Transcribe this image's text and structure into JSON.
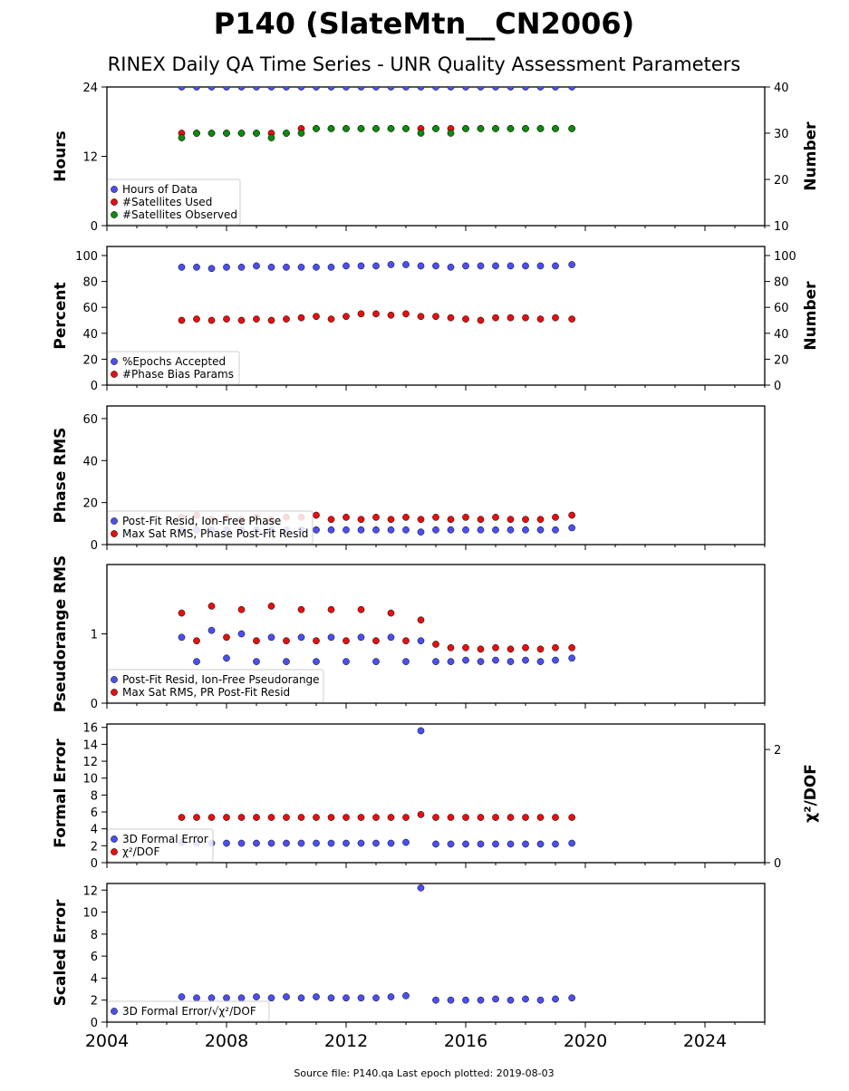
{
  "title": "P140 (SlateMtn__CN2006)",
  "subtitle": "RINEX Daily QA Time Series - UNR Quality Assessment Parameters",
  "footer": "Source file: P140.qa Last epoch plotted: 2019-08-03",
  "colors": {
    "blue": "#4b4ff0",
    "red": "#e41010",
    "green": "#0e8a0e",
    "edge": "#000000"
  },
  "chart_data": [
    {
      "type": "scatter",
      "xlim": [
        2004,
        2026
      ],
      "x_ticks": [
        2004,
        2008,
        2012,
        2016,
        2020,
        2024
      ],
      "x_tick_labels": [
        "2004",
        "2008",
        "2012",
        "2016",
        "2020",
        "2024"
      ],
      "ylabel": "Hours",
      "ylim": [
        0,
        24
      ],
      "y_ticks": [
        0,
        12,
        24
      ],
      "y2label": "Number",
      "y2lim": [
        10,
        40
      ],
      "y2_ticks": [
        10,
        20,
        30,
        40
      ],
      "legend_loc": "lower-left",
      "series": [
        {
          "name": "Hours of Data",
          "color": "blue",
          "axis": "left",
          "x": [
            2006.5,
            2007.0,
            2007.5,
            2008.0,
            2008.5,
            2009.0,
            2009.5,
            2010.0,
            2010.5,
            2011.0,
            2011.5,
            2012.0,
            2012.5,
            2013.0,
            2013.5,
            2014.0,
            2014.5,
            2015.0,
            2015.5,
            2016.0,
            2016.5,
            2017.0,
            2017.5,
            2018.0,
            2018.5,
            2019.0,
            2019.55
          ],
          "y": [
            24,
            24,
            24,
            24,
            24,
            24,
            24,
            24,
            24,
            24,
            24,
            24,
            24,
            24,
            24,
            24,
            24,
            24,
            24,
            24,
            24,
            24,
            24,
            24,
            24,
            24,
            24
          ]
        },
        {
          "name": "#Satellites Used",
          "color": "red",
          "axis": "right",
          "x": [
            2006.5,
            2007.0,
            2007.5,
            2008.0,
            2008.5,
            2009.0,
            2009.5,
            2010.0,
            2010.5,
            2011.0,
            2011.5,
            2012.0,
            2012.5,
            2013.0,
            2013.5,
            2014.0,
            2014.5,
            2015.0,
            2015.5,
            2016.0,
            2016.5,
            2017.0,
            2017.5,
            2018.0,
            2018.5,
            2019.0,
            2019.55
          ],
          "y": [
            30,
            30,
            30,
            30,
            30,
            30,
            30,
            30,
            31,
            31,
            31,
            31,
            31,
            31,
            31,
            31,
            31,
            31,
            31,
            31,
            31,
            31,
            31,
            31,
            31,
            31,
            31
          ]
        },
        {
          "name": "#Satellites Observed",
          "color": "green",
          "axis": "right",
          "x": [
            2006.5,
            2007.0,
            2007.5,
            2008.0,
            2008.5,
            2009.0,
            2009.5,
            2010.0,
            2010.5,
            2011.0,
            2011.5,
            2012.0,
            2012.5,
            2013.0,
            2013.5,
            2014.0,
            2014.5,
            2015.0,
            2015.5,
            2016.0,
            2016.5,
            2017.0,
            2017.5,
            2018.0,
            2018.5,
            2019.0,
            2019.55
          ],
          "y": [
            29,
            30,
            30,
            30,
            30,
            30,
            29,
            30,
            30,
            31,
            31,
            31,
            31,
            31,
            31,
            31,
            30,
            31,
            30,
            31,
            31,
            31,
            31,
            31,
            31,
            31,
            31
          ]
        }
      ]
    },
    {
      "type": "scatter",
      "xlim": [
        2004,
        2026
      ],
      "ylabel": "Percent",
      "ylim": [
        0,
        107
      ],
      "y_ticks": [
        0,
        20,
        40,
        60,
        80,
        100
      ],
      "y2label": "Number",
      "y2lim": [
        0,
        107
      ],
      "y2_ticks": [
        0,
        20,
        40,
        60,
        80,
        100
      ],
      "legend_loc": "lower-left",
      "series": [
        {
          "name": "%Epochs Accepted",
          "color": "blue",
          "axis": "left",
          "x": [
            2006.5,
            2007.0,
            2007.5,
            2008.0,
            2008.5,
            2009.0,
            2009.5,
            2010.0,
            2010.5,
            2011.0,
            2011.5,
            2012.0,
            2012.5,
            2013.0,
            2013.5,
            2014.0,
            2014.5,
            2015.0,
            2015.5,
            2016.0,
            2016.5,
            2017.0,
            2017.5,
            2018.0,
            2018.5,
            2019.0,
            2019.55
          ],
          "y": [
            91,
            91,
            90,
            91,
            91,
            92,
            91,
            91,
            91,
            91,
            91,
            92,
            92,
            92,
            93,
            93,
            92,
            92,
            91,
            92,
            92,
            92,
            92,
            92,
            92,
            92,
            93
          ]
        },
        {
          "name": "#Phase Bias Params",
          "color": "red",
          "axis": "right",
          "x": [
            2006.5,
            2007.0,
            2007.5,
            2008.0,
            2008.5,
            2009.0,
            2009.5,
            2010.0,
            2010.5,
            2011.0,
            2011.5,
            2012.0,
            2012.5,
            2013.0,
            2013.5,
            2014.0,
            2014.5,
            2015.0,
            2015.5,
            2016.0,
            2016.5,
            2017.0,
            2017.5,
            2018.0,
            2018.5,
            2019.0,
            2019.55
          ],
          "y": [
            50,
            51,
            50,
            51,
            50,
            51,
            50,
            51,
            52,
            53,
            51,
            53,
            55,
            55,
            54,
            55,
            53,
            53,
            52,
            51,
            50,
            52,
            52,
            52,
            51,
            52,
            51
          ]
        }
      ]
    },
    {
      "type": "scatter",
      "xlim": [
        2004,
        2026
      ],
      "ylabel": "Phase RMS",
      "ylim": [
        0,
        66
      ],
      "y_ticks": [
        0,
        20,
        40,
        60
      ],
      "legend_loc": "lower-left",
      "series": [
        {
          "name": "Post-Fit Resid, Ion-Free Phase",
          "color": "blue",
          "axis": "left",
          "x": [
            2006.5,
            2007.0,
            2007.5,
            2008.0,
            2008.5,
            2009.0,
            2009.5,
            2010.0,
            2010.5,
            2011.0,
            2011.5,
            2012.0,
            2012.5,
            2013.0,
            2013.5,
            2014.0,
            2014.5,
            2015.0,
            2015.5,
            2016.0,
            2016.5,
            2017.0,
            2017.5,
            2018.0,
            2018.5,
            2019.0,
            2019.55
          ],
          "y": [
            7,
            7,
            7,
            7,
            7,
            7,
            7,
            7,
            7,
            7,
            7,
            7,
            7,
            7,
            7,
            7,
            6,
            7,
            7,
            7,
            7,
            7,
            7,
            7,
            7,
            7,
            8
          ]
        },
        {
          "name": "Max Sat RMS, Phase Post-Fit Resid",
          "color": "red",
          "axis": "left",
          "x": [
            2006.5,
            2007.0,
            2007.5,
            2008.0,
            2008.5,
            2009.0,
            2009.5,
            2010.0,
            2010.5,
            2011.0,
            2011.5,
            2012.0,
            2012.5,
            2013.0,
            2013.5,
            2014.0,
            2014.5,
            2015.0,
            2015.5,
            2016.0,
            2016.5,
            2017.0,
            2017.5,
            2018.0,
            2018.5,
            2019.0,
            2019.55
          ],
          "y": [
            13,
            14,
            12,
            13,
            12,
            13,
            12,
            13,
            13,
            14,
            12,
            13,
            12,
            13,
            12,
            13,
            12,
            13,
            12,
            13,
            12,
            13,
            12,
            12,
            12,
            13,
            14
          ]
        }
      ]
    },
    {
      "type": "scatter",
      "xlim": [
        2004,
        2026
      ],
      "ylabel": "Pseudorange RMS",
      "ylim": [
        0,
        2.0
      ],
      "y_ticks": [
        0,
        1
      ],
      "legend_loc": "lower-left",
      "series": [
        {
          "name": "Post-Fit Resid, Ion-Free Pseudorange",
          "color": "blue",
          "axis": "left",
          "x": [
            2006.5,
            2007.0,
            2007.5,
            2008.0,
            2008.5,
            2009.0,
            2009.5,
            2010.0,
            2010.5,
            2011.0,
            2011.5,
            2012.0,
            2012.5,
            2013.0,
            2013.5,
            2014.0,
            2014.5,
            2015.0,
            2015.5,
            2016.0,
            2016.5,
            2017.0,
            2017.5,
            2018.0,
            2018.5,
            2019.0,
            2019.55
          ],
          "y": [
            0.95,
            0.6,
            1.05,
            0.65,
            1.0,
            0.6,
            0.95,
            0.6,
            0.95,
            0.6,
            0.95,
            0.6,
            0.95,
            0.6,
            0.95,
            0.6,
            0.9,
            0.6,
            0.6,
            0.62,
            0.6,
            0.62,
            0.6,
            0.62,
            0.6,
            0.62,
            0.65
          ]
        },
        {
          "name": "Max Sat RMS, PR Post-Fit Resid",
          "color": "red",
          "axis": "left",
          "x": [
            2006.5,
            2007.0,
            2007.5,
            2008.0,
            2008.5,
            2009.0,
            2009.5,
            2010.0,
            2010.5,
            2011.0,
            2011.5,
            2012.0,
            2012.5,
            2013.0,
            2013.5,
            2014.0,
            2014.5,
            2015.0,
            2015.5,
            2016.0,
            2016.5,
            2017.0,
            2017.5,
            2018.0,
            2018.5,
            2019.0,
            2019.55
          ],
          "y": [
            1.3,
            0.9,
            1.4,
            0.95,
            1.35,
            0.9,
            1.4,
            0.9,
            1.35,
            0.9,
            1.35,
            0.9,
            1.35,
            0.9,
            1.3,
            0.9,
            1.2,
            0.85,
            0.8,
            0.8,
            0.78,
            0.8,
            0.78,
            0.8,
            0.78,
            0.8,
            0.8
          ]
        }
      ]
    },
    {
      "type": "scatter",
      "xlim": [
        2004,
        2026
      ],
      "ylabel": "Formal Error",
      "ylim": [
        0,
        16.4
      ],
      "y_ticks": [
        0,
        2,
        4,
        6,
        8,
        10,
        12,
        14,
        16
      ],
      "y2label": "χ²/DOF",
      "y2lim": [
        0,
        2.45
      ],
      "y2_ticks": [
        0,
        2
      ],
      "legend_loc": "lower-left",
      "series": [
        {
          "name": "3D Formal Error",
          "color": "blue",
          "axis": "left",
          "x": [
            2006.5,
            2007.0,
            2007.5,
            2008.0,
            2008.5,
            2009.0,
            2009.5,
            2010.0,
            2010.5,
            2011.0,
            2011.5,
            2012.0,
            2012.5,
            2013.0,
            2013.5,
            2014.0,
            2014.5,
            2015.0,
            2015.5,
            2016.0,
            2016.5,
            2017.0,
            2017.5,
            2018.0,
            2018.5,
            2019.0,
            2019.55
          ],
          "y": [
            2.4,
            2.3,
            2.3,
            2.3,
            2.3,
            2.3,
            2.3,
            2.3,
            2.3,
            2.3,
            2.3,
            2.3,
            2.3,
            2.3,
            2.3,
            2.4,
            15.6,
            2.2,
            2.2,
            2.2,
            2.2,
            2.2,
            2.2,
            2.2,
            2.2,
            2.2,
            2.3
          ]
        },
        {
          "name": "χ²/DOF",
          "color": "red",
          "axis": "right",
          "x": [
            2006.5,
            2007.0,
            2007.5,
            2008.0,
            2008.5,
            2009.0,
            2009.5,
            2010.0,
            2010.5,
            2011.0,
            2011.5,
            2012.0,
            2012.5,
            2013.0,
            2013.5,
            2014.0,
            2014.5,
            2015.0,
            2015.5,
            2016.0,
            2016.5,
            2017.0,
            2017.5,
            2018.0,
            2018.5,
            2019.0,
            2019.55
          ],
          "y": [
            0.8,
            0.8,
            0.8,
            0.8,
            0.8,
            0.8,
            0.8,
            0.8,
            0.8,
            0.8,
            0.8,
            0.8,
            0.8,
            0.8,
            0.8,
            0.8,
            0.85,
            0.8,
            0.8,
            0.8,
            0.8,
            0.8,
            0.8,
            0.8,
            0.8,
            0.8,
            0.8
          ]
        }
      ]
    },
    {
      "type": "scatter",
      "xlim": [
        2004,
        2026
      ],
      "ylabel": "Scaled Error",
      "ylim": [
        0,
        12.6
      ],
      "y_ticks": [
        0,
        2,
        4,
        6,
        8,
        10,
        12
      ],
      "legend_loc": "lower-left",
      "series": [
        {
          "name": "3D Formal Error/√χ²/DOF",
          "color": "blue",
          "axis": "left",
          "x": [
            2006.5,
            2007.0,
            2007.5,
            2008.0,
            2008.5,
            2009.0,
            2009.5,
            2010.0,
            2010.5,
            2011.0,
            2011.5,
            2012.0,
            2012.5,
            2013.0,
            2013.5,
            2014.0,
            2014.5,
            2015.0,
            2015.5,
            2016.0,
            2016.5,
            2017.0,
            2017.5,
            2018.0,
            2018.5,
            2019.0,
            2019.55
          ],
          "y": [
            2.3,
            2.2,
            2.2,
            2.2,
            2.2,
            2.3,
            2.2,
            2.3,
            2.2,
            2.3,
            2.2,
            2.2,
            2.2,
            2.2,
            2.3,
            2.4,
            12.2,
            2.0,
            2.0,
            2.0,
            2.0,
            2.1,
            2.0,
            2.1,
            2.0,
            2.1,
            2.2
          ]
        }
      ]
    }
  ]
}
